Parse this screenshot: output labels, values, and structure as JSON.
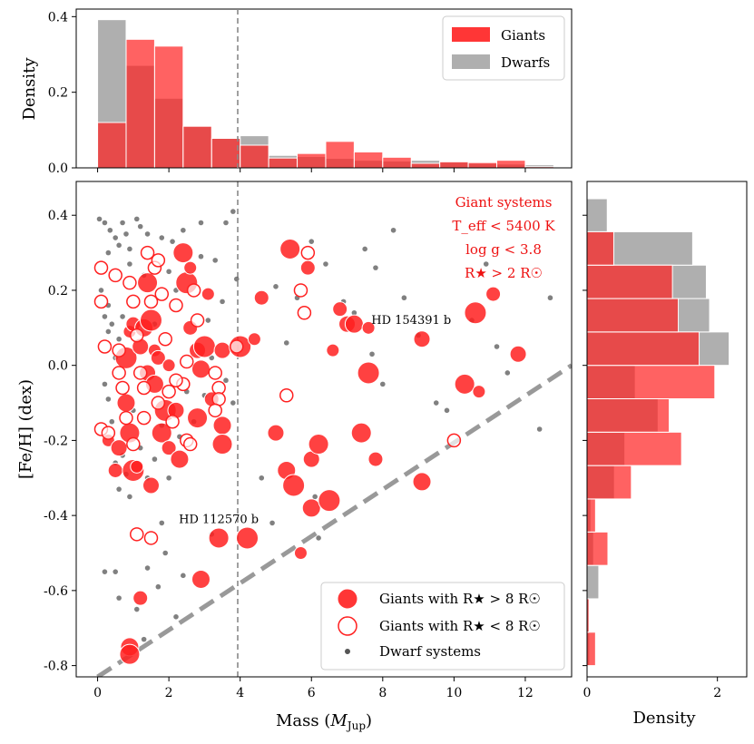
{
  "chart_data": [
    {
      "id": "scatter",
      "type": "scatter",
      "xlabel": "Mass (M_Jup)",
      "ylabel": "[Fe/H] (dex)",
      "xlim": [
        -0.6,
        13.3
      ],
      "ylim": [
        -0.83,
        0.49
      ],
      "xticks": [
        "0",
        "2",
        "4",
        "6",
        "8",
        "10",
        "12"
      ],
      "yticks": [
        "0.4",
        "0.2",
        "0.0",
        "-0.2",
        "-0.4",
        "-0.6",
        "-0.8"
      ],
      "vline_x": 4,
      "dashed_line": {
        "x": [
          0,
          13.3
        ],
        "y": [
          -0.83,
          0.0
        ]
      },
      "annotations": [
        {
          "text": "HD 154391 b",
          "x": 8.8,
          "y": 0.11
        },
        {
          "text": "HD 112570 b",
          "x": 3.4,
          "y": -0.42
        }
      ],
      "selection_box": {
        "title": "Giant systems",
        "teff": "T_eff < 5400 K",
        "logg": "log g < 3.8",
        "radius": "R★ > 2 R☉"
      },
      "legend": [
        {
          "label": "Giants with R★ > 8 R☉",
          "marker": "filled-red-circle"
        },
        {
          "label": "Giants with R★ < 8 R☉",
          "marker": "open-red-circle"
        },
        {
          "label": "Dwarf systems",
          "marker": "small-grey-dot"
        }
      ],
      "colors": {
        "giant": "#ff2020",
        "dwarf": "#555555",
        "edge": "#ffffff"
      },
      "series": [
        {
          "name": "Giants with R★ > 8 R☉",
          "points": [
            [
              0.3,
              -0.2
            ],
            [
              0.5,
              -0.28
            ],
            [
              0.6,
              -0.22
            ],
            [
              0.8,
              -0.1
            ],
            [
              0.9,
              -0.18
            ],
            [
              1.0,
              -0.28
            ],
            [
              1.1,
              -0.27
            ],
            [
              1.2,
              -0.62
            ],
            [
              1.5,
              -0.32
            ],
            [
              0.9,
              -0.75
            ],
            [
              0.9,
              -0.77
            ],
            [
              0.8,
              0.02
            ],
            [
              0.9,
              0.09
            ],
            [
              1.0,
              0.11
            ],
            [
              1.2,
              0.05
            ],
            [
              1.3,
              0.1
            ],
            [
              1.4,
              0.22
            ],
            [
              1.5,
              0.12
            ],
            [
              1.6,
              0.04
            ],
            [
              1.7,
              0.02
            ],
            [
              1.4,
              -0.02
            ],
            [
              1.6,
              -0.05
            ],
            [
              1.8,
              -0.18
            ],
            [
              1.9,
              -0.12
            ],
            [
              2.0,
              0.0
            ],
            [
              2.0,
              -0.22
            ],
            [
              2.2,
              -0.12
            ],
            [
              2.3,
              -0.25
            ],
            [
              2.4,
              0.3
            ],
            [
              2.5,
              0.22
            ],
            [
              2.6,
              0.26
            ],
            [
              2.6,
              0.1
            ],
            [
              2.8,
              0.04
            ],
            [
              2.9,
              -0.01
            ],
            [
              2.8,
              -0.14
            ],
            [
              3.0,
              0.05
            ],
            [
              3.1,
              0.19
            ],
            [
              3.2,
              -0.09
            ],
            [
              3.5,
              0.04
            ],
            [
              3.5,
              -0.16
            ],
            [
              3.5,
              -0.21
            ],
            [
              4.0,
              0.05
            ],
            [
              4.4,
              0.07
            ],
            [
              4.6,
              0.18
            ],
            [
              5.0,
              -0.18
            ],
            [
              5.3,
              -0.28
            ],
            [
              5.4,
              0.31
            ],
            [
              5.5,
              -0.32
            ],
            [
              5.7,
              -0.5
            ],
            [
              5.9,
              0.26
            ],
            [
              6.0,
              -0.25
            ],
            [
              6.0,
              -0.38
            ],
            [
              6.2,
              -0.21
            ],
            [
              6.5,
              -0.36
            ],
            [
              6.6,
              0.04
            ],
            [
              6.8,
              0.15
            ],
            [
              7.0,
              0.11
            ],
            [
              7.2,
              0.11
            ],
            [
              7.4,
              -0.18
            ],
            [
              7.6,
              -0.02
            ],
            [
              7.6,
              0.1
            ],
            [
              7.8,
              -0.25
            ],
            [
              9.1,
              0.07
            ],
            [
              9.1,
              -0.31
            ],
            [
              10.3,
              -0.05
            ],
            [
              10.6,
              0.14
            ],
            [
              10.7,
              -0.07
            ],
            [
              11.1,
              0.19
            ],
            [
              11.8,
              0.03
            ],
            [
              2.9,
              -0.57
            ],
            [
              3.4,
              -0.46
            ],
            [
              4.2,
              -0.46
            ]
          ]
        },
        {
          "name": "Giants with R★ < 8 R☉",
          "points": [
            [
              0.1,
              0.26
            ],
            [
              0.1,
              0.17
            ],
            [
              0.2,
              0.05
            ],
            [
              0.5,
              0.24
            ],
            [
              0.6,
              0.04
            ],
            [
              0.7,
              -0.06
            ],
            [
              0.9,
              0.22
            ],
            [
              1.0,
              0.17
            ],
            [
              1.1,
              0.08
            ],
            [
              1.2,
              -0.02
            ],
            [
              1.3,
              -0.06
            ],
            [
              1.4,
              0.3
            ],
            [
              1.5,
              0.17
            ],
            [
              1.6,
              0.26
            ],
            [
              1.7,
              0.28
            ],
            [
              1.8,
              0.19
            ],
            [
              1.9,
              0.07
            ],
            [
              2.0,
              -0.07
            ],
            [
              2.1,
              -0.15
            ],
            [
              2.2,
              0.16
            ],
            [
              2.4,
              -0.05
            ],
            [
              2.5,
              0.01
            ],
            [
              2.5,
              -0.2
            ],
            [
              2.6,
              -0.21
            ],
            [
              2.7,
              0.2
            ],
            [
              2.8,
              0.12
            ],
            [
              0.1,
              -0.17
            ],
            [
              0.3,
              -0.18
            ],
            [
              0.6,
              -0.02
            ],
            [
              0.8,
              -0.14
            ],
            [
              1.0,
              -0.21
            ],
            [
              1.3,
              -0.14
            ],
            [
              1.7,
              -0.1
            ],
            [
              2.2,
              -0.04
            ],
            [
              3.3,
              -0.02
            ],
            [
              3.4,
              -0.06
            ],
            [
              3.4,
              -0.09
            ],
            [
              3.3,
              -0.12
            ],
            [
              3.9,
              0.05
            ],
            [
              5.3,
              -0.08
            ],
            [
              5.7,
              0.2
            ],
            [
              5.8,
              0.14
            ],
            [
              5.9,
              0.3
            ],
            [
              1.1,
              -0.45
            ],
            [
              1.5,
              -0.46
            ],
            [
              10.0,
              -0.2
            ]
          ]
        },
        {
          "name": "Dwarf systems",
          "points": [
            [
              0.05,
              0.39
            ],
            [
              0.2,
              0.38
            ],
            [
              0.3,
              0.3
            ],
            [
              0.35,
              0.36
            ],
            [
              0.5,
              0.34
            ],
            [
              0.6,
              0.32
            ],
            [
              0.7,
              0.38
            ],
            [
              0.8,
              0.35
            ],
            [
              0.9,
              0.31
            ],
            [
              1.1,
              0.39
            ],
            [
              1.2,
              0.37
            ],
            [
              1.4,
              0.35
            ],
            [
              1.8,
              0.34
            ],
            [
              2.1,
              0.33
            ],
            [
              2.4,
              0.36
            ],
            [
              2.9,
              0.38
            ],
            [
              3.6,
              0.38
            ],
            [
              3.8,
              0.41
            ],
            [
              0.1,
              0.2
            ],
            [
              0.2,
              0.13
            ],
            [
              0.3,
              0.16
            ],
            [
              0.3,
              0.09
            ],
            [
              0.4,
              0.11
            ],
            [
              0.5,
              0.02
            ],
            [
              0.6,
              0.07
            ],
            [
              0.7,
              0.13
            ],
            [
              0.9,
              0.27
            ],
            [
              1.3,
              0.24
            ],
            [
              1.6,
              0.11
            ],
            [
              2.0,
              0.25
            ],
            [
              2.2,
              0.2
            ],
            [
              2.9,
              0.29
            ],
            [
              3.3,
              0.28
            ],
            [
              3.1,
              0.12
            ],
            [
              3.5,
              0.17
            ],
            [
              3.9,
              0.23
            ],
            [
              0.2,
              -0.05
            ],
            [
              0.3,
              -0.09
            ],
            [
              0.4,
              -0.15
            ],
            [
              0.5,
              -0.26
            ],
            [
              0.6,
              -0.33
            ],
            [
              0.7,
              -0.24
            ],
            [
              0.8,
              -0.29
            ],
            [
              0.9,
              -0.35
            ],
            [
              1.0,
              -0.12
            ],
            [
              1.2,
              -0.22
            ],
            [
              1.4,
              -0.3
            ],
            [
              1.6,
              -0.25
            ],
            [
              1.8,
              -0.16
            ],
            [
              2.0,
              -0.3
            ],
            [
              2.3,
              -0.19
            ],
            [
              2.5,
              -0.07
            ],
            [
              2.7,
              -0.15
            ],
            [
              3.0,
              -0.08
            ],
            [
              3.2,
              0.02
            ],
            [
              3.6,
              -0.04
            ],
            [
              3.8,
              -0.1
            ],
            [
              1.9,
              -0.5
            ],
            [
              1.4,
              -0.54
            ],
            [
              0.6,
              -0.62
            ],
            [
              1.7,
              -0.59
            ],
            [
              2.4,
              -0.56
            ],
            [
              0.2,
              -0.55
            ],
            [
              0.5,
              -0.55
            ],
            [
              1.8,
              -0.42
            ],
            [
              0.9,
              -0.75
            ],
            [
              1.3,
              -0.73
            ],
            [
              1.1,
              -0.65
            ],
            [
              5.0,
              0.21
            ],
            [
              5.3,
              0.06
            ],
            [
              5.6,
              0.18
            ],
            [
              6.0,
              0.33
            ],
            [
              6.4,
              0.27
            ],
            [
              6.9,
              0.17
            ],
            [
              7.2,
              0.14
            ],
            [
              7.5,
              0.31
            ],
            [
              7.8,
              0.26
            ],
            [
              8.3,
              0.36
            ],
            [
              8.6,
              0.18
            ],
            [
              9.0,
              0.08
            ],
            [
              9.5,
              -0.1
            ],
            [
              10.5,
              0.12
            ],
            [
              11.2,
              0.05
            ],
            [
              12.4,
              -0.17
            ],
            [
              12.7,
              0.18
            ],
            [
              9.8,
              -0.12
            ],
            [
              6.2,
              -0.46
            ],
            [
              4.6,
              -0.3
            ],
            [
              4.9,
              -0.42
            ],
            [
              6.1,
              -0.35
            ],
            [
              7.7,
              0.03
            ],
            [
              8.0,
              -0.05
            ],
            [
              10.9,
              0.27
            ],
            [
              11.5,
              -0.02
            ],
            [
              3.2,
              -0.45
            ],
            [
              2.2,
              -0.67
            ]
          ]
        }
      ]
    },
    {
      "id": "top-hist",
      "type": "bar",
      "title": "",
      "xlabel": "",
      "ylabel": "Density",
      "ylim": [
        0,
        0.42
      ],
      "yticks": [
        "0.4",
        "0.2",
        "0.0"
      ],
      "bin_edges": [
        0,
        0.8,
        1.6,
        2.4,
        3.2,
        4.0,
        4.8,
        5.6,
        6.4,
        7.2,
        8.0,
        8.8,
        9.6,
        10.4,
        11.2,
        12.0,
        12.8
      ],
      "series": [
        {
          "name": "Dwarfs",
          "values": [
            0.392,
            0.271,
            0.184,
            0.11,
            0.08,
            0.085,
            0.033,
            0.03,
            0.025,
            0.02,
            0.018,
            0.02,
            0.015,
            0.012,
            0.01,
            0.008
          ]
        },
        {
          "name": "Giants",
          "values": [
            0.12,
            0.34,
            0.322,
            0.11,
            0.078,
            0.06,
            0.026,
            0.038,
            0.07,
            0.042,
            0.028,
            0.012,
            0.016,
            0.014,
            0.02,
            0.003
          ]
        }
      ],
      "legend": [
        "Giants",
        "Dwarfs"
      ]
    },
    {
      "id": "right-hist",
      "type": "bar",
      "title": "",
      "xlabel": "Density",
      "ylabel": "",
      "xlim": [
        0,
        2.45
      ],
      "xticks": [
        "0",
        "2"
      ],
      "bin_edges": [
        -0.8,
        -0.711,
        -0.622,
        -0.533,
        -0.444,
        -0.356,
        -0.267,
        -0.178,
        -0.089,
        0.0,
        0.089,
        0.178,
        0.267,
        0.356,
        0.444
      ],
      "series": [
        {
          "name": "Dwarfs",
          "values": [
            0.04,
            0.04,
            0.18,
            0.1,
            0.06,
            0.42,
            0.58,
            1.09,
            0.74,
            2.18,
            1.88,
            1.83,
            1.62,
            0.31
          ]
        },
        {
          "name": "Giants",
          "values": [
            0.13,
            0.03,
            0.0,
            0.32,
            0.13,
            0.68,
            1.45,
            1.26,
            1.96,
            1.72,
            1.4,
            1.31,
            0.41,
            0.0
          ]
        }
      ]
    }
  ]
}
